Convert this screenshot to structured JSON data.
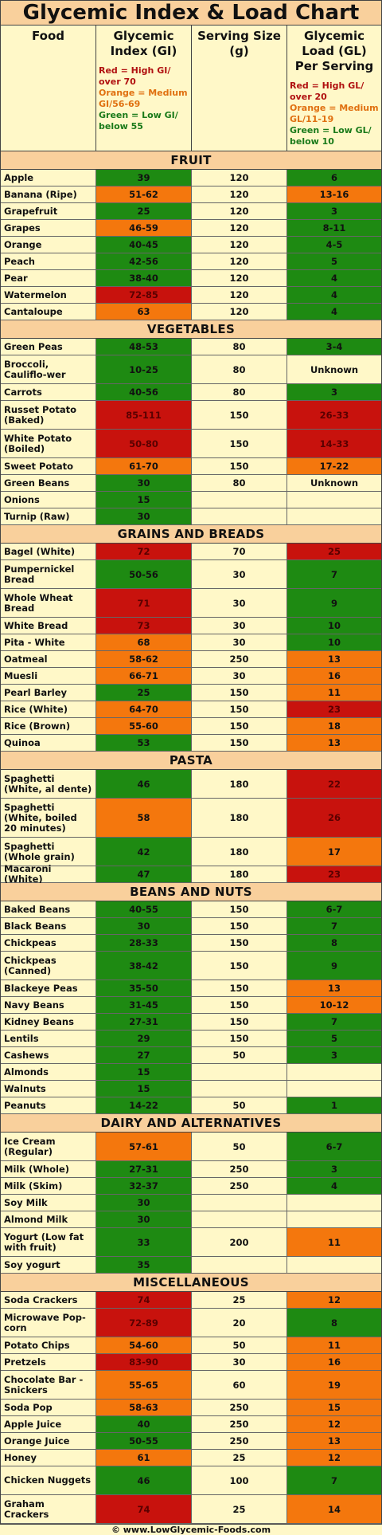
{
  "title": "Glycemic Index & Load Chart",
  "header": {
    "food": "Food",
    "gi": "Glycemic Index (GI)",
    "serving": "Serving Size (g)",
    "gl": "Glycemic Load (GL) Per Serving",
    "gi_legend": {
      "red": "Red = High GI/ over 70",
      "orange": "Orange = Medium GI/56-69",
      "green": "Green = Low GI/ below 55"
    },
    "gl_legend": {
      "red": "Red = High GL/ over 20",
      "orange": "Orange = Medium GL/11-19",
      "green": "Green = Low GL/ below 10"
    }
  },
  "colors": {
    "red": "#c8120d",
    "orange": "#f4770d",
    "green": "#1e8a12",
    "header_bg": "#f9d09c",
    "background": "#fff8c8"
  },
  "sections": [
    {
      "name": "FRUIT",
      "rows": [
        {
          "food": "Apple",
          "gi": "39",
          "gi_level": "green",
          "serving": "120",
          "gl": "6",
          "gl_level": "green",
          "lines": 1
        },
        {
          "food": "Banana  (Ripe)",
          "gi": "51-62",
          "gi_level": "orange",
          "serving": "120",
          "gl": "13-16",
          "gl_level": "orange",
          "lines": 1
        },
        {
          "food": "Grapefruit",
          "gi": "25",
          "gi_level": "green",
          "serving": "120",
          "gl": "3",
          "gl_level": "green",
          "lines": 1
        },
        {
          "food": "Grapes",
          "gi": "46-59",
          "gi_level": "orange",
          "serving": "120",
          "gl": "8-11",
          "gl_level": "green",
          "lines": 1
        },
        {
          "food": "Orange",
          "gi": "40-45",
          "gi_level": "green",
          "serving": "120",
          "gl": "4-5",
          "gl_level": "green",
          "lines": 1
        },
        {
          "food": "Peach",
          "gi": "42-56",
          "gi_level": "green",
          "serving": "120",
          "gl": "5",
          "gl_level": "green",
          "lines": 1
        },
        {
          "food": "Pear",
          "gi": "38-40",
          "gi_level": "green",
          "serving": "120",
          "gl": "4",
          "gl_level": "green",
          "lines": 1
        },
        {
          "food": "Watermelon",
          "gi": "72-85",
          "gi_level": "red",
          "serving": "120",
          "gl": "4",
          "gl_level": "green",
          "lines": 1
        },
        {
          "food": "Cantaloupe",
          "gi": "63",
          "gi_level": "orange",
          "serving": "120",
          "gl": "4",
          "gl_level": "green",
          "lines": 1
        }
      ]
    },
    {
      "name": "VEGETABLES",
      "rows": [
        {
          "food": "Green Peas",
          "gi": "48-53",
          "gi_level": "green",
          "serving": "80",
          "gl": "3-4",
          "gl_level": "green",
          "lines": 1
        },
        {
          "food": "Broccoli, Cauliflo-wer",
          "gi": "10-25",
          "gi_level": "green",
          "serving": "80",
          "gl": "Unknown",
          "gl_level": "none",
          "lines": 2
        },
        {
          "food": "Carrots",
          "gi": "40-56",
          "gi_level": "green",
          "serving": "80",
          "gl": "3",
          "gl_level": "green",
          "lines": 1
        },
        {
          "food": "Russet Potato (Baked)",
          "gi": "85-111",
          "gi_level": "red",
          "serving": "150",
          "gl": "26-33",
          "gl_level": "red",
          "lines": 2
        },
        {
          "food": "White Potato (Boiled)",
          "gi": "50-80",
          "gi_level": "red",
          "serving": "150",
          "gl": "14-33",
          "gl_level": "red",
          "lines": 2
        },
        {
          "food": "Sweet Potato",
          "gi": "61-70",
          "gi_level": "orange",
          "serving": "150",
          "gl": "17-22",
          "gl_level": "orange",
          "lines": 1
        },
        {
          "food": "Green Beans",
          "gi": "30",
          "gi_level": "green",
          "serving": "80",
          "gl": "Unknown",
          "gl_level": "none",
          "lines": 1
        },
        {
          "food": "Onions",
          "gi": "15",
          "gi_level": "green",
          "serving": "",
          "gl": "",
          "gl_level": "none",
          "lines": 1
        },
        {
          "food": "Turnip (Raw)",
          "gi": "30",
          "gi_level": "green",
          "serving": "",
          "gl": "",
          "gl_level": "none",
          "lines": 1
        }
      ]
    },
    {
      "name": "GRAINS AND BREADS",
      "rows": [
        {
          "food": "Bagel (White)",
          "gi": "72",
          "gi_level": "red",
          "serving": "70",
          "gl": "25",
          "gl_level": "red",
          "lines": 1
        },
        {
          "food": "Pumpernickel Bread",
          "gi": "50-56",
          "gi_level": "green",
          "serving": "30",
          "gl": "7",
          "gl_level": "green",
          "lines": 2
        },
        {
          "food": "Whole Wheat Bread",
          "gi": "71",
          "gi_level": "red",
          "serving": "30",
          "gl": "9",
          "gl_level": "green",
          "lines": 2
        },
        {
          "food": "White Bread",
          "gi": "73",
          "gi_level": "red",
          "serving": "30",
          "gl": "10",
          "gl_level": "green",
          "lines": 1
        },
        {
          "food": "Pita - White",
          "gi": "68",
          "gi_level": "orange",
          "serving": "30",
          "gl": "10",
          "gl_level": "green",
          "lines": 1
        },
        {
          "food": "Oatmeal",
          "gi": "58-62",
          "gi_level": "orange",
          "serving": "250",
          "gl": "13",
          "gl_level": "orange",
          "lines": 1
        },
        {
          "food": "Muesli",
          "gi": "66-71",
          "gi_level": "orange",
          "serving": "30",
          "gl": "16",
          "gl_level": "orange",
          "lines": 1
        },
        {
          "food": "Pearl Barley",
          "gi": "25",
          "gi_level": "green",
          "serving": "150",
          "gl": "11",
          "gl_level": "orange",
          "lines": 1
        },
        {
          "food": "Rice (White)",
          "gi": "64-70",
          "gi_level": "orange",
          "serving": "150",
          "gl": "23",
          "gl_level": "red",
          "lines": 1
        },
        {
          "food": "Rice (Brown)",
          "gi": "55-60",
          "gi_level": "orange",
          "serving": "150",
          "gl": "18",
          "gl_level": "orange",
          "lines": 1
        },
        {
          "food": "Quinoa",
          "gi": "53",
          "gi_level": "green",
          "serving": "150",
          "gl": "13",
          "gl_level": "orange",
          "lines": 1
        }
      ]
    },
    {
      "name": "PASTA",
      "rows": [
        {
          "food": "Spaghetti (White, al dente)",
          "gi": "46",
          "gi_level": "green",
          "serving": "180",
          "gl": "22",
          "gl_level": "red",
          "lines": 2
        },
        {
          "food": "Spaghetti (White, boiled 20 minutes)",
          "gi": "58",
          "gi_level": "orange",
          "serving": "180",
          "gl": "26",
          "gl_level": "red",
          "lines": 3
        },
        {
          "food": "Spaghetti (Whole grain)",
          "gi": "42",
          "gi_level": "green",
          "serving": "180",
          "gl": "17",
          "gl_level": "orange",
          "lines": 2
        },
        {
          "food": "Macaroni (White)",
          "gi": "47",
          "gi_level": "green",
          "serving": "180",
          "gl": "23",
          "gl_level": "red",
          "lines": 1
        }
      ]
    },
    {
      "name": "BEANS AND NUTS",
      "rows": [
        {
          "food": "Baked Beans",
          "gi": "40-55",
          "gi_level": "green",
          "serving": "150",
          "gl": "6-7",
          "gl_level": "green",
          "lines": 1
        },
        {
          "food": "Black Beans",
          "gi": "30",
          "gi_level": "green",
          "serving": "150",
          "gl": "7",
          "gl_level": "green",
          "lines": 1
        },
        {
          "food": "Chickpeas",
          "gi": "28-33",
          "gi_level": "green",
          "serving": "150",
          "gl": "8",
          "gl_level": "green",
          "lines": 1
        },
        {
          "food": "Chickpeas (Canned)",
          "gi": "38-42",
          "gi_level": "green",
          "serving": "150",
          "gl": "9",
          "gl_level": "green",
          "lines": 2
        },
        {
          "food": "Blackeye Peas",
          "gi": "35-50",
          "gi_level": "green",
          "serving": "150",
          "gl": "13",
          "gl_level": "orange",
          "lines": 1
        },
        {
          "food": "Navy Beans",
          "gi": "31-45",
          "gi_level": "green",
          "serving": "150",
          "gl": "10-12",
          "gl_level": "orange",
          "lines": 1
        },
        {
          "food": "Kidney Beans",
          "gi": "27-31",
          "gi_level": "green",
          "serving": "150",
          "gl": "7",
          "gl_level": "green",
          "lines": 1
        },
        {
          "food": "Lentils",
          "gi": "29",
          "gi_level": "green",
          "serving": "150",
          "gl": "5",
          "gl_level": "green",
          "lines": 1
        },
        {
          "food": "Cashews",
          "gi": "27",
          "gi_level": "green",
          "serving": "50",
          "gl": "3",
          "gl_level": "green",
          "lines": 1
        },
        {
          "food": "Almonds",
          "gi": "15",
          "gi_level": "green",
          "serving": "",
          "gl": "",
          "gl_level": "none",
          "lines": 1
        },
        {
          "food": "Walnuts",
          "gi": "15",
          "gi_level": "green",
          "serving": "",
          "gl": "",
          "gl_level": "none",
          "lines": 1
        },
        {
          "food": "Peanuts",
          "gi": "14-22",
          "gi_level": "green",
          "serving": "50",
          "gl": "1",
          "gl_level": "green",
          "lines": 1
        }
      ]
    },
    {
      "name": "DAIRY AND ALTERNATIVES",
      "rows": [
        {
          "food": "Ice Cream (Regular)",
          "gi": "57-61",
          "gi_level": "orange",
          "serving": "50",
          "gl": "6-7",
          "gl_level": "green",
          "lines": 2
        },
        {
          "food": "Milk (Whole)",
          "gi": "27-31",
          "gi_level": "green",
          "serving": "250",
          "gl": "3",
          "gl_level": "green",
          "lines": 1
        },
        {
          "food": "Milk (Skim)",
          "gi": "32-37",
          "gi_level": "green",
          "serving": "250",
          "gl": "4",
          "gl_level": "green",
          "lines": 1
        },
        {
          "food": "Soy Milk",
          "gi": "30",
          "gi_level": "green",
          "serving": "",
          "gl": "",
          "gl_level": "none",
          "lines": 1
        },
        {
          "food": "Almond Milk",
          "gi": "30",
          "gi_level": "green",
          "serving": "",
          "gl": "",
          "gl_level": "none",
          "lines": 1
        },
        {
          "food": "Yogurt (Low fat with fruit)",
          "gi": "33",
          "gi_level": "green",
          "serving": "200",
          "gl": "11",
          "gl_level": "orange",
          "lines": 2
        },
        {
          "food": "Soy yogurt",
          "gi": "35",
          "gi_level": "green",
          "serving": "",
          "gl": "",
          "gl_level": "none",
          "lines": 1
        }
      ]
    },
    {
      "name": "MISCELLANEOUS",
      "rows": [
        {
          "food": "Soda Crackers",
          "gi": "74",
          "gi_level": "red",
          "serving": "25",
          "gl": "12",
          "gl_level": "orange",
          "lines": 1
        },
        {
          "food": "Microwave Pop-corn",
          "gi": "72-89",
          "gi_level": "red",
          "serving": "20",
          "gl": "8",
          "gl_level": "green",
          "lines": 2
        },
        {
          "food": "Potato Chips",
          "gi": "54-60",
          "gi_level": "orange",
          "serving": "50",
          "gl": "11",
          "gl_level": "orange",
          "lines": 1
        },
        {
          "food": "Pretzels",
          "gi": "83-90",
          "gi_level": "red",
          "serving": "30",
          "gl": "16",
          "gl_level": "orange",
          "lines": 1
        },
        {
          "food": "Chocolate Bar - Snickers",
          "gi": "55-65",
          "gi_level": "orange",
          "serving": "60",
          "gl": "19",
          "gl_level": "orange",
          "lines": 2
        },
        {
          "food": "Soda Pop",
          "gi": "58-63",
          "gi_level": "orange",
          "serving": "250",
          "gl": "15",
          "gl_level": "orange",
          "lines": 1
        },
        {
          "food": "Apple Juice",
          "gi": "40",
          "gi_level": "green",
          "serving": "250",
          "gl": "12",
          "gl_level": "orange",
          "lines": 1
        },
        {
          "food": "Orange Juice",
          "gi": "50-55",
          "gi_level": "green",
          "serving": "250",
          "gl": "13",
          "gl_level": "orange",
          "lines": 1
        },
        {
          "food": "Honey",
          "gi": "61",
          "gi_level": "orange",
          "serving": "25",
          "gl": "12",
          "gl_level": "orange",
          "lines": 1
        },
        {
          "food": "Chicken Nuggets",
          "gi": "46",
          "gi_level": "green",
          "serving": "100",
          "gl": "7",
          "gl_level": "green",
          "lines": 2
        },
        {
          "food": "Graham Crackers",
          "gi": "74",
          "gi_level": "red",
          "serving": "25",
          "gl": "14",
          "gl_level": "orange",
          "lines": 2
        }
      ]
    }
  ],
  "footer": "© www.LowGlycemic-Foods.com"
}
